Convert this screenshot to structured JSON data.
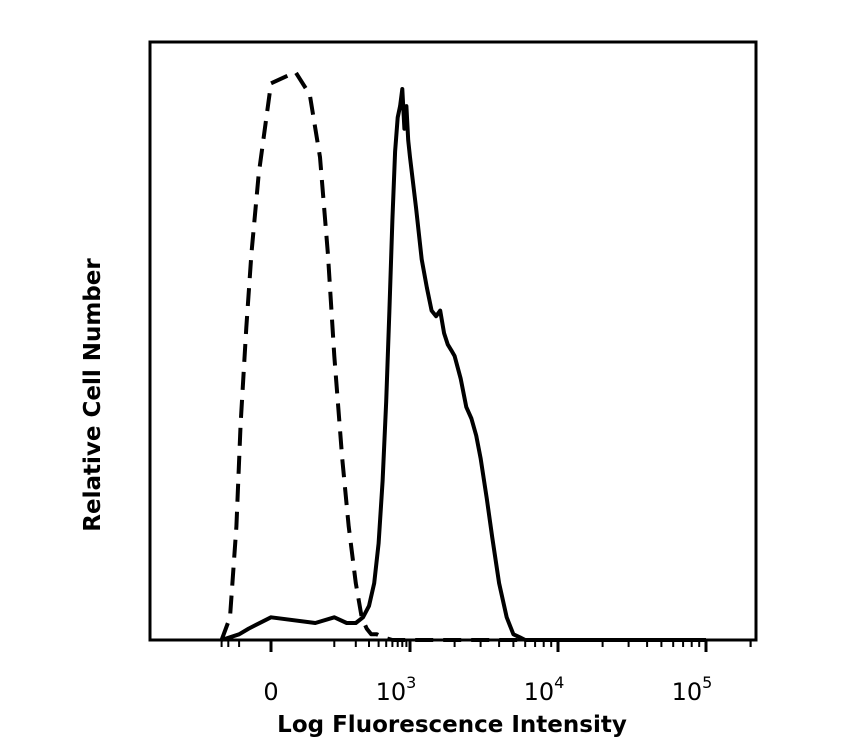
{
  "chart_data": {
    "type": "line",
    "title": "",
    "xlabel": "Log Fluorescence Intensity",
    "ylabel": "Relative Cell Number",
    "x_scale": "biexponential",
    "xlim": [
      -300,
      200000
    ],
    "ylim": [
      0,
      100
    ],
    "grid": false,
    "legend": "none",
    "x_ticks": [
      {
        "value": 0,
        "base": "0",
        "exp": ""
      },
      {
        "value": 1000,
        "base": "10",
        "exp": "3"
      },
      {
        "value": 10000,
        "base": "10",
        "exp": "4"
      },
      {
        "value": 100000,
        "base": "10",
        "exp": "5"
      }
    ],
    "series": [
      {
        "style": "dashed",
        "color": "#000000",
        "x": [
          -300,
          -180,
          -120,
          -90,
          -60,
          -40,
          -20,
          0,
          20,
          40,
          60,
          80,
          100,
          130,
          160,
          200,
          240,
          280,
          320,
          380,
          450,
          600,
          900,
          2000,
          10000,
          100000
        ],
        "y": [
          0,
          4,
          20,
          38,
          55,
          68,
          82,
          98,
          100,
          96,
          85,
          68,
          50,
          32,
          20,
          10,
          4,
          2,
          1,
          1,
          0.5,
          0,
          0,
          0,
          0,
          0
        ]
      },
      {
        "style": "solid",
        "color": "#000000",
        "x": [
          -300,
          -100,
          -50,
          0,
          50,
          100,
          150,
          200,
          250,
          300,
          350,
          400,
          450,
          500,
          550,
          600,
          650,
          700,
          750,
          800,
          850,
          900,
          950,
          1000,
          1100,
          1200,
          1300,
          1400,
          1500,
          1600,
          1700,
          1800,
          1900,
          2000,
          2200,
          2400,
          2600,
          2800,
          3000,
          3300,
          3600,
          4000,
          4500,
          5000,
          5500,
          6000,
          7000,
          10000,
          100000
        ],
        "y": [
          0,
          1,
          2,
          4,
          3,
          4,
          3,
          3,
          4,
          6,
          10,
          17,
          28,
          42,
          58,
          74,
          86,
          92,
          94,
          97,
          90,
          94,
          88,
          85,
          76,
          67,
          62,
          58,
          57,
          58,
          54,
          52,
          51,
          50,
          46,
          41,
          39,
          36,
          32,
          25,
          18,
          10,
          4,
          1,
          0.5,
          0,
          0,
          0,
          0
        ]
      }
    ]
  }
}
